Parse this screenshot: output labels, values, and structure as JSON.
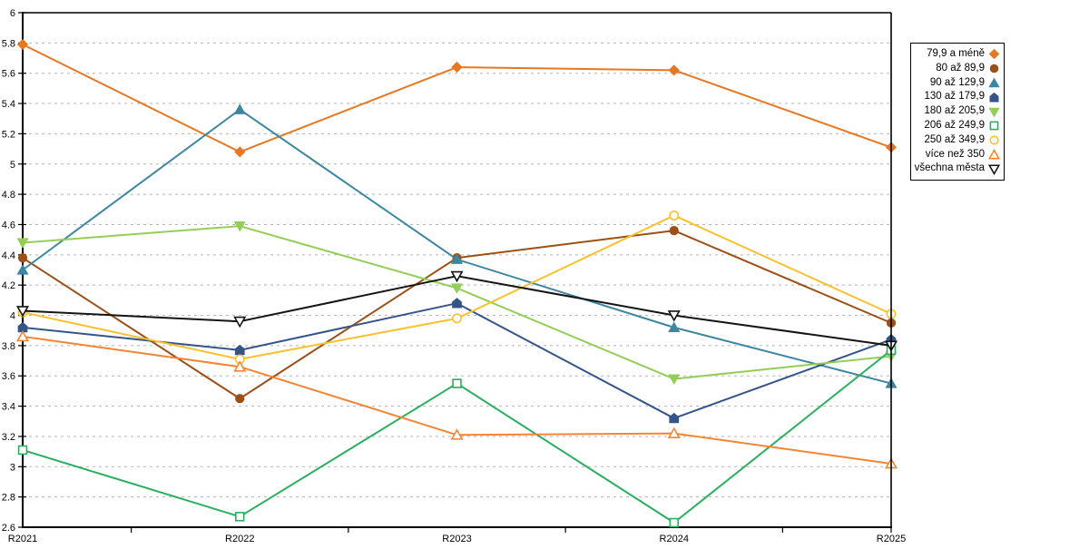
{
  "chart_data": {
    "type": "line",
    "title": "",
    "categories": [
      "R2021",
      "R2022",
      "R2023",
      "R2024",
      "R2025"
    ],
    "y_axis": {
      "min": 2.6,
      "max": 6.0,
      "step": 0.2,
      "tick_labels": [
        "6",
        "5.8",
        "5.6",
        "5.4",
        "5.2",
        "5",
        "4.8",
        "4.6",
        "4.4",
        "4.2",
        "4",
        "3.8",
        "3.6",
        "3.4",
        "3.2",
        "3",
        "2.8",
        "2.6"
      ]
    },
    "grid": "horizontal-dashed",
    "legend_position": "top-right",
    "series": [
      {
        "name": "79,9 a méně",
        "color": "#E87722",
        "marker": "diamond",
        "filled": true,
        "values": [
          5.79,
          5.08,
          5.64,
          5.62,
          5.11
        ]
      },
      {
        "name": "80 až 89,9",
        "color": "#9C4F16",
        "marker": "circle",
        "filled": true,
        "values": [
          4.38,
          3.45,
          4.38,
          4.56,
          3.95
        ]
      },
      {
        "name": "90 až 129,9",
        "color": "#3B87A2",
        "marker": "triangle-up",
        "filled": true,
        "values": [
          4.3,
          5.36,
          4.37,
          3.92,
          3.55
        ]
      },
      {
        "name": "130 až 179,9",
        "color": "#35548A",
        "marker": "pentagon",
        "filled": true,
        "values": [
          3.92,
          3.77,
          4.08,
          3.32,
          3.84
        ]
      },
      {
        "name": "180 až 205,9",
        "color": "#94CE58",
        "marker": "triangle-down",
        "filled": true,
        "values": [
          4.48,
          4.59,
          4.18,
          3.58,
          3.73
        ]
      },
      {
        "name": "206 až 249,9",
        "color": "#2AAF5F",
        "marker": "square",
        "filled": false,
        "values": [
          3.11,
          2.67,
          3.55,
          2.63,
          3.77
        ]
      },
      {
        "name": "250 až 349,9",
        "color": "#FBC12D",
        "marker": "circle",
        "filled": false,
        "values": [
          4.02,
          3.71,
          3.98,
          4.66,
          4.01
        ]
      },
      {
        "name": "více než 350",
        "color": "#F58534",
        "marker": "triangle-up",
        "filled": false,
        "values": [
          3.86,
          3.66,
          3.21,
          3.22,
          3.02
        ]
      },
      {
        "name": "všechna města",
        "color": "#141414",
        "marker": "triangle-down",
        "filled": false,
        "values": [
          4.03,
          3.96,
          4.26,
          4.0,
          3.8
        ]
      }
    ]
  },
  "colors": {
    "background": "#FFFFFF",
    "gridline": "#B5B5B5",
    "axis": "#000000",
    "legend_border": "#000000"
  }
}
